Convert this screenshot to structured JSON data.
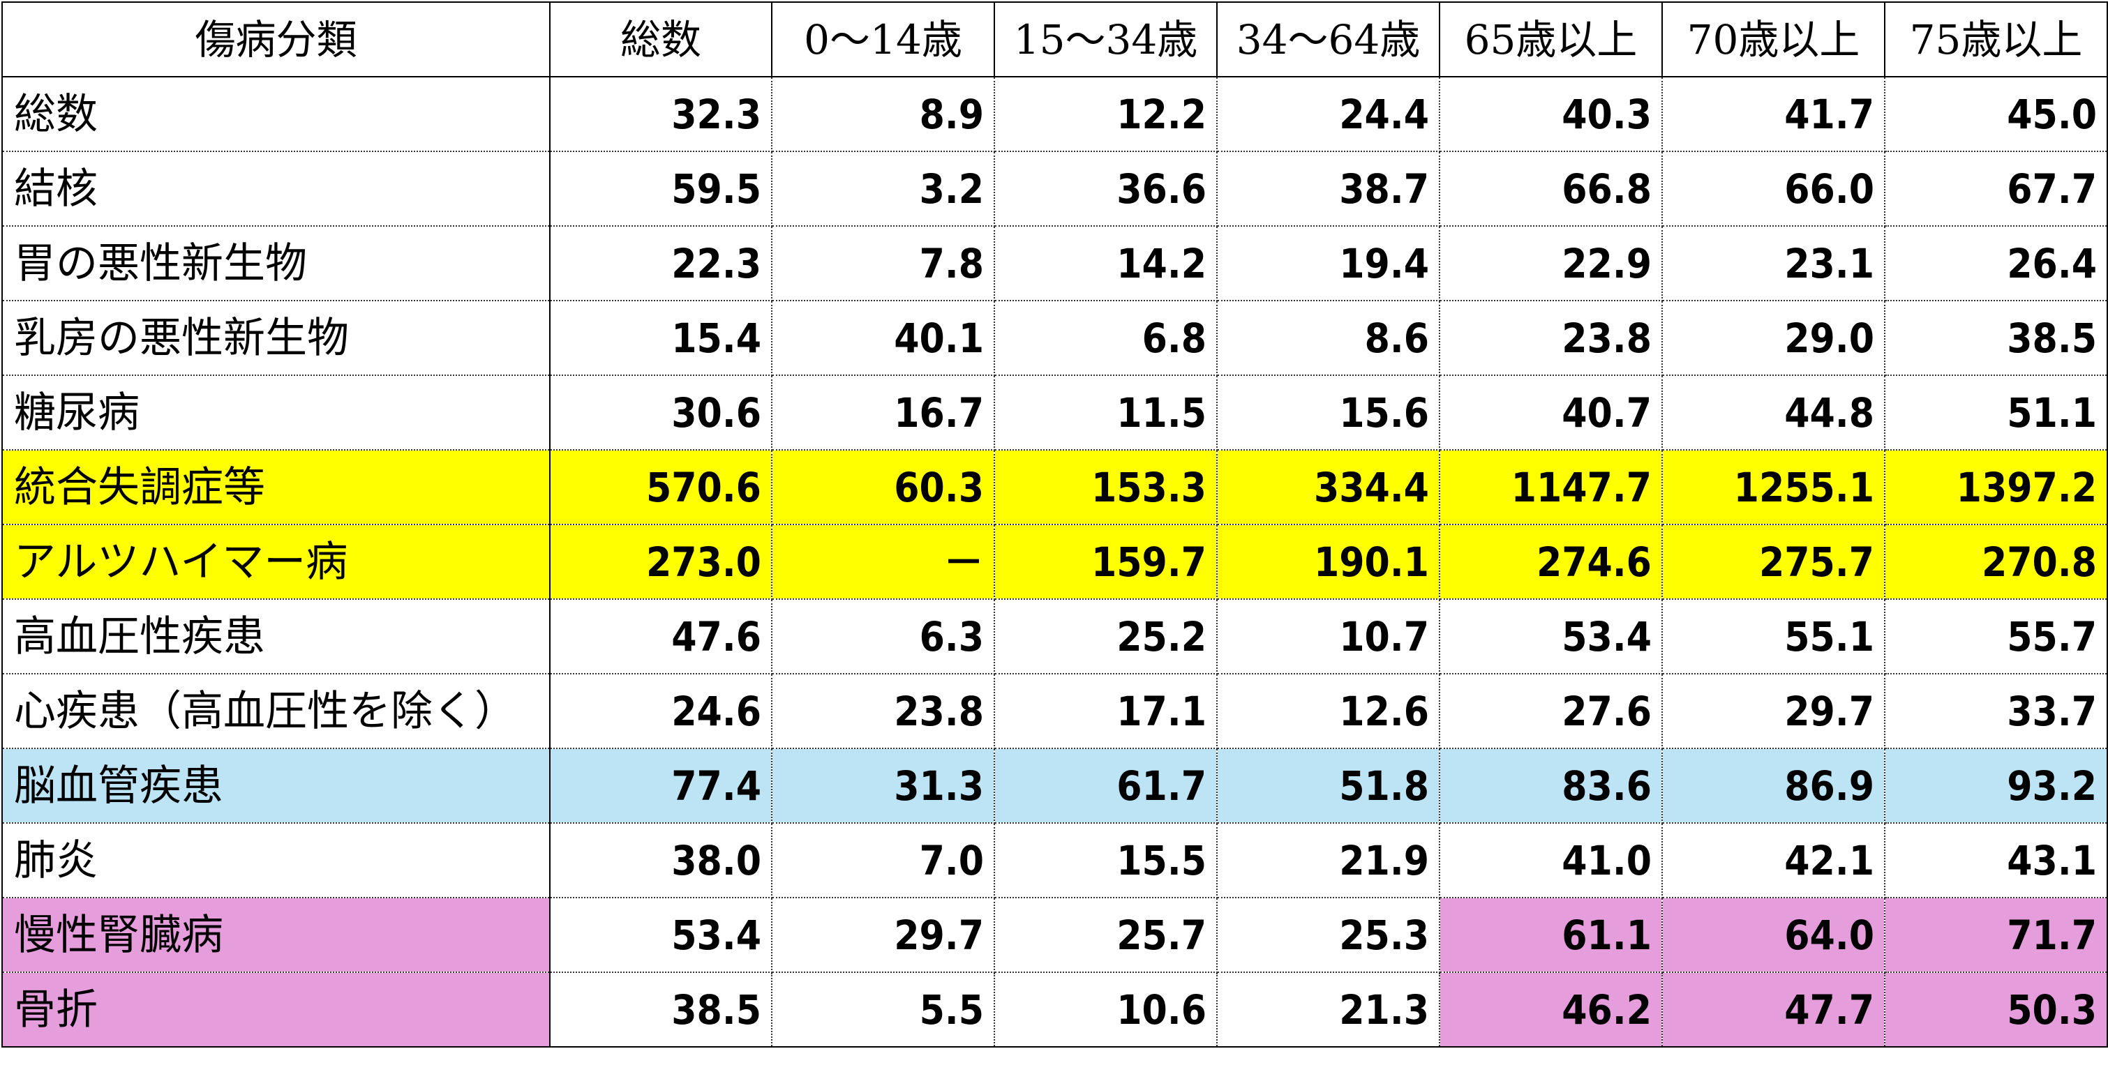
{
  "table": {
    "headers": [
      "傷病分類",
      "総数",
      "0～14歳",
      "15～34歳",
      "34～64歳",
      "65歳以上",
      "70歳以上",
      "75歳以上"
    ],
    "highlight_colors": {
      "yellow": "#ffff00",
      "blue": "#bde4f4",
      "pink": "#e59edb",
      "white": "#ffffff"
    },
    "rows": [
      {
        "name": "総数",
        "values": [
          "32.3",
          "8.9",
          "12.2",
          "24.4",
          "40.3",
          "41.7",
          "45.0"
        ],
        "highlight": "none"
      },
      {
        "name": "結核",
        "values": [
          "59.5",
          "3.2",
          "36.6",
          "38.7",
          "66.8",
          "66.0",
          "67.7"
        ],
        "highlight": "none"
      },
      {
        "name": "胃の悪性新生物",
        "values": [
          "22.3",
          "7.8",
          "14.2",
          "19.4",
          "22.9",
          "23.1",
          "26.4"
        ],
        "highlight": "none"
      },
      {
        "name": "乳房の悪性新生物",
        "values": [
          "15.4",
          "40.1",
          "6.8",
          "8.6",
          "23.8",
          "29.0",
          "38.5"
        ],
        "highlight": "none"
      },
      {
        "name": "糖尿病",
        "values": [
          "30.6",
          "16.7",
          "11.5",
          "15.6",
          "40.7",
          "44.8",
          "51.1"
        ],
        "highlight": "none"
      },
      {
        "name": "統合失調症等",
        "values": [
          "570.6",
          "60.3",
          "153.3",
          "334.4",
          "1147.7",
          "1255.1",
          "1397.2"
        ],
        "highlight": "yellow-row"
      },
      {
        "name": "アルツハイマー病",
        "values": [
          "273.0",
          "－",
          "159.7",
          "190.1",
          "274.6",
          "275.7",
          "270.8"
        ],
        "highlight": "yellow-row"
      },
      {
        "name": "高血圧性疾患",
        "values": [
          "47.6",
          "6.3",
          "25.2",
          "10.7",
          "53.4",
          "55.1",
          "55.7"
        ],
        "highlight": "none"
      },
      {
        "name": "心疾患（高血圧性を除く）",
        "values": [
          "24.6",
          "23.8",
          "17.1",
          "12.6",
          "27.6",
          "29.7",
          "33.7"
        ],
        "highlight": "none"
      },
      {
        "name": "脳血管疾患",
        "values": [
          "77.4",
          "31.3",
          "61.7",
          "51.8",
          "83.6",
          "86.9",
          "93.2"
        ],
        "highlight": "blue-row"
      },
      {
        "name": "肺炎",
        "values": [
          "38.0",
          "7.0",
          "15.5",
          "21.9",
          "41.0",
          "42.1",
          "43.1"
        ],
        "highlight": "none"
      },
      {
        "name": "慢性腎臓病",
        "values": [
          "53.4",
          "29.7",
          "25.7",
          "25.3",
          "61.1",
          "64.0",
          "71.7"
        ],
        "highlight": "pink-partial"
      },
      {
        "name": "骨折",
        "values": [
          "38.5",
          "5.5",
          "10.6",
          "21.3",
          "46.2",
          "47.7",
          "50.3"
        ],
        "highlight": "pink-partial"
      }
    ]
  }
}
